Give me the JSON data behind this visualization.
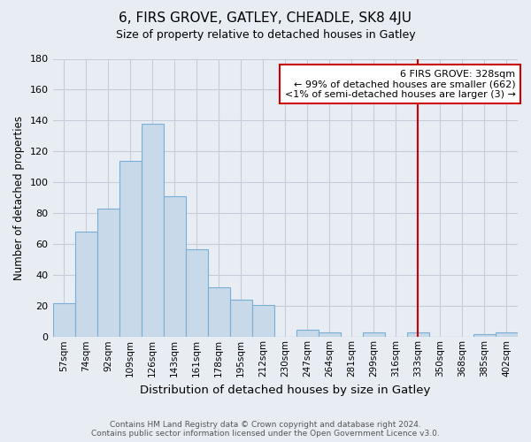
{
  "title": "6, FIRS GROVE, GATLEY, CHEADLE, SK8 4JU",
  "subtitle": "Size of property relative to detached houses in Gatley",
  "xlabel": "Distribution of detached houses by size in Gatley",
  "ylabel": "Number of detached properties",
  "footnote1": "Contains HM Land Registry data © Crown copyright and database right 2024.",
  "footnote2": "Contains public sector information licensed under the Open Government Licence v3.0.",
  "bar_labels": [
    "57sqm",
    "74sqm",
    "92sqm",
    "109sqm",
    "126sqm",
    "143sqm",
    "161sqm",
    "178sqm",
    "195sqm",
    "212sqm",
    "230sqm",
    "247sqm",
    "264sqm",
    "281sqm",
    "299sqm",
    "316sqm",
    "333sqm",
    "350sqm",
    "368sqm",
    "385sqm",
    "402sqm"
  ],
  "bar_values": [
    22,
    68,
    83,
    114,
    138,
    91,
    57,
    32,
    24,
    21,
    0,
    5,
    3,
    0,
    3,
    0,
    3,
    0,
    0,
    2,
    3
  ],
  "bar_color": "#c8d9ea",
  "bar_edge_color": "#7aaed4",
  "grid_color": "#c5cdd8",
  "bg_color": "#e8edf4",
  "vline_x_index": 16,
  "vline_color": "#cc0000",
  "annotation_text": "6 FIRS GROVE: 328sqm\n← 99% of detached houses are smaller (662)\n<1% of semi-detached houses are larger (3) →",
  "annotation_box_color": "#ffffff",
  "annotation_box_edge": "#cc0000",
  "ylim": [
    0,
    180
  ],
  "yticks": [
    0,
    20,
    40,
    60,
    80,
    100,
    120,
    140,
    160,
    180
  ]
}
